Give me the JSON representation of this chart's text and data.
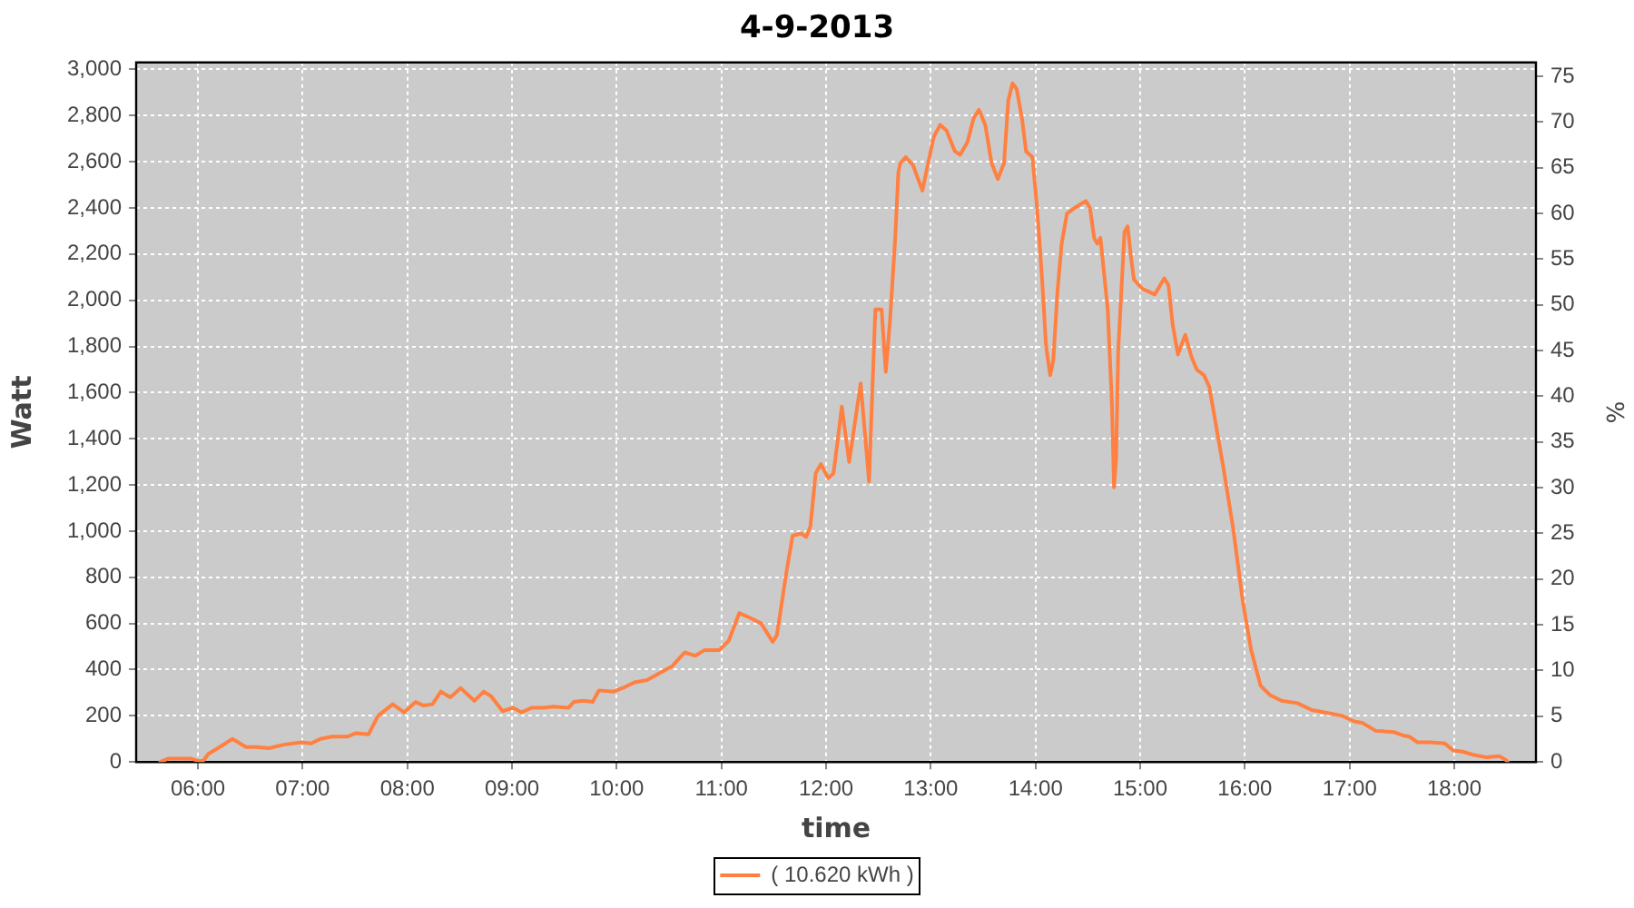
{
  "chart_data": {
    "type": "line",
    "title": "4-9-2013",
    "xlabel": "time",
    "ylabel": "Watt",
    "y2label": "%",
    "x": [
      5.64,
      5.72,
      5.93,
      6.0,
      6.05,
      6.1,
      6.19,
      6.33,
      6.46,
      6.56,
      6.68,
      6.82,
      6.99,
      7.08,
      7.17,
      7.28,
      7.43,
      7.51,
      7.63,
      7.72,
      7.86,
      7.97,
      8.08,
      8.15,
      8.24,
      8.32,
      8.41,
      8.51,
      8.64,
      8.73,
      8.8,
      8.91,
      9.01,
      9.09,
      9.19,
      9.3,
      9.39,
      9.54,
      9.59,
      9.68,
      9.77,
      9.83,
      9.97,
      10.08,
      10.17,
      10.29,
      10.41,
      10.53,
      10.65,
      10.75,
      10.84,
      10.98,
      11.07,
      11.17,
      11.27,
      11.38,
      11.49,
      11.53,
      11.62,
      11.68,
      11.76,
      11.81,
      11.85,
      11.9,
      11.95,
      12.02,
      12.07,
      12.11,
      12.15,
      12.22,
      12.33,
      12.41,
      12.47,
      12.53,
      12.57,
      12.61,
      12.66,
      12.69,
      12.71,
      12.76,
      12.83,
      12.92,
      12.97,
      13.03,
      13.09,
      13.15,
      13.23,
      13.28,
      13.35,
      13.41,
      13.46,
      13.52,
      13.58,
      13.64,
      13.7,
      13.74,
      13.78,
      13.82,
      13.87,
      13.91,
      13.97,
      14.01,
      14.04,
      14.07,
      14.1,
      14.14,
      14.17,
      14.21,
      14.25,
      14.3,
      14.39,
      14.48,
      14.52,
      14.56,
      14.59,
      14.62,
      14.69,
      14.73,
      14.75,
      14.77,
      14.79,
      14.82,
      14.85,
      14.88,
      14.91,
      14.94,
      15.02,
      15.14,
      15.23,
      15.27,
      15.31,
      15.36,
      15.43,
      15.49,
      15.54,
      15.61,
      15.66,
      15.71,
      15.8,
      15.89,
      15.98,
      16.06,
      16.15,
      16.24,
      16.35,
      16.5,
      16.64,
      16.76,
      16.93,
      17.05,
      17.12,
      17.25,
      17.42,
      17.51,
      17.57,
      17.65,
      17.77,
      17.91,
      17.99,
      18.08,
      18.19,
      18.31,
      18.43,
      18.49,
      18.51
    ],
    "series": [
      {
        "name": "( 10.620 kWh )",
        "color": "#ff8040",
        "values": [
          0,
          15,
          15,
          5,
          5,
          35,
          60,
          100,
          65,
          65,
          60,
          75,
          85,
          80,
          100,
          110,
          110,
          125,
          120,
          200,
          250,
          215,
          260,
          245,
          250,
          305,
          280,
          320,
          265,
          305,
          285,
          220,
          235,
          215,
          235,
          235,
          240,
          235,
          260,
          265,
          260,
          310,
          305,
          325,
          345,
          355,
          385,
          415,
          475,
          460,
          485,
          485,
          525,
          645,
          625,
          600,
          520,
          550,
          820,
          980,
          990,
          975,
          1020,
          1250,
          1290,
          1230,
          1250,
          1390,
          1540,
          1300,
          1640,
          1215,
          1960,
          1960,
          1690,
          1910,
          2270,
          2555,
          2595,
          2620,
          2585,
          2475,
          2585,
          2710,
          2760,
          2735,
          2645,
          2630,
          2685,
          2790,
          2825,
          2760,
          2595,
          2525,
          2595,
          2865,
          2940,
          2915,
          2790,
          2645,
          2620,
          2425,
          2245,
          2040,
          1805,
          1675,
          1740,
          2040,
          2245,
          2375,
          2405,
          2430,
          2400,
          2270,
          2245,
          2270,
          1960,
          1550,
          1190,
          1315,
          1780,
          2040,
          2295,
          2320,
          2195,
          2090,
          2050,
          2025,
          2095,
          2065,
          1895,
          1765,
          1850,
          1755,
          1700,
          1675,
          1625,
          1495,
          1260,
          1005,
          695,
          485,
          330,
          290,
          265,
          255,
          225,
          215,
          200,
          175,
          170,
          135,
          130,
          115,
          110,
          85,
          85,
          80,
          50,
          45,
          30,
          20,
          25,
          10,
          0
        ]
      }
    ],
    "xlim": [
      5.41,
      18.78
    ],
    "xticks": [
      {
        "value": 6,
        "label": "06:00"
      },
      {
        "value": 7,
        "label": "07:00"
      },
      {
        "value": 8,
        "label": "08:00"
      },
      {
        "value": 9,
        "label": "09:00"
      },
      {
        "value": 10,
        "label": "10:00"
      },
      {
        "value": 11,
        "label": "11:00"
      },
      {
        "value": 12,
        "label": "12:00"
      },
      {
        "value": 13,
        "label": "13:00"
      },
      {
        "value": 14,
        "label": "14:00"
      },
      {
        "value": 15,
        "label": "15:00"
      },
      {
        "value": 16,
        "label": "16:00"
      },
      {
        "value": 17,
        "label": "17:00"
      },
      {
        "value": 18,
        "label": "18:00"
      }
    ],
    "ylim": [
      0,
      3030
    ],
    "yticks": [
      0,
      200,
      400,
      600,
      800,
      {
        "value": 1000,
        "label": "1,000"
      },
      {
        "value": 1200,
        "label": "1,200"
      },
      {
        "value": 1400,
        "label": "1,400"
      },
      {
        "value": 1600,
        "label": "1,600"
      },
      {
        "value": 1800,
        "label": "1,800"
      },
      {
        "value": 2000,
        "label": "2,000"
      },
      {
        "value": 2200,
        "label": "2,200"
      },
      {
        "value": 2400,
        "label": "2,400"
      },
      {
        "value": 2600,
        "label": "2,600"
      },
      {
        "value": 2800,
        "label": "2,800"
      },
      {
        "value": 3000,
        "label": "3,000"
      }
    ],
    "y2lim": [
      0,
      76.5
    ],
    "y2ticks": [
      0,
      5,
      10,
      15,
      20,
      25,
      30,
      35,
      40,
      45,
      50,
      55,
      60,
      65,
      70,
      75
    ],
    "grid": true,
    "legend": "bottom",
    "marker": "none",
    "line_style": "solid"
  }
}
